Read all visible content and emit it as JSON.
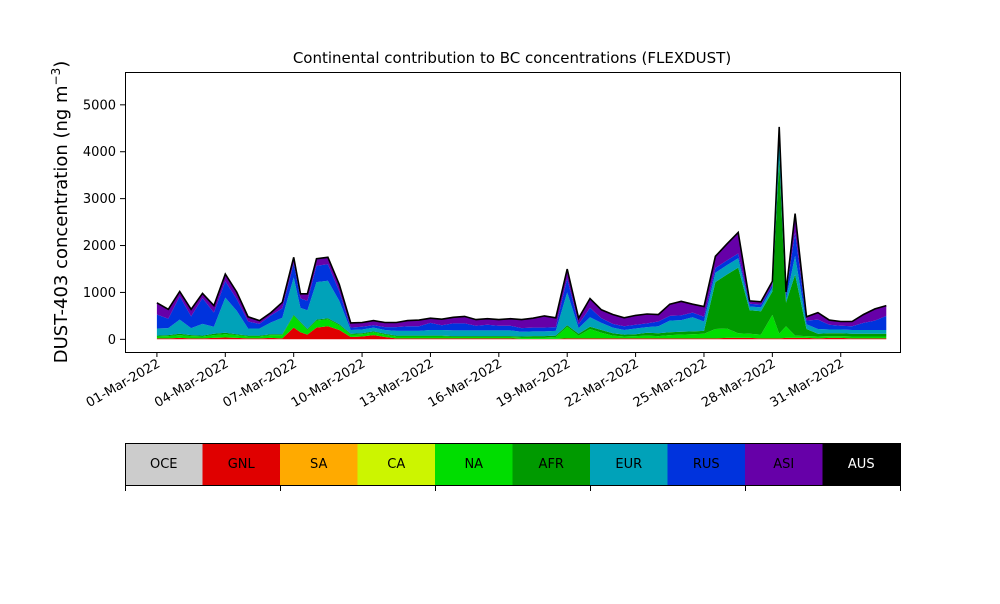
{
  "chart_data": {
    "type": "area",
    "title": "Continental contribution to BC concentrations (FLEXDUST)",
    "ylabel_main": "DUST-403 concentration (ng m",
    "ylabel_sup": "−3",
    "ylabel_close": ")",
    "xlabel": "",
    "ylim": [
      -270,
      5700
    ],
    "yticks": [
      0,
      1000,
      2000,
      3000,
      4000,
      5000
    ],
    "xticks": [
      {
        "day": 1,
        "label": "01-Mar-2022"
      },
      {
        "day": 4,
        "label": "04-Mar-2022"
      },
      {
        "day": 7,
        "label": "07-Mar-2022"
      },
      {
        "day": 10,
        "label": "10-Mar-2022"
      },
      {
        "day": 13,
        "label": "13-Mar-2022"
      },
      {
        "day": 16,
        "label": "16-Mar-2022"
      },
      {
        "day": 19,
        "label": "19-Mar-2022"
      },
      {
        "day": 22,
        "label": "22-Mar-2022"
      },
      {
        "day": 25,
        "label": "25-Mar-2022"
      },
      {
        "day": 28,
        "label": "28-Mar-2022"
      },
      {
        "day": 31,
        "label": "31-Mar-2022"
      }
    ],
    "xlim_days": [
      -0.4,
      33.6
    ],
    "legend": [
      {
        "name": "OCE",
        "color": "#cccccc",
        "text_color": "#000000"
      },
      {
        "name": "GNL",
        "color": "#e00000",
        "text_color": "#000000"
      },
      {
        "name": "SA",
        "color": "#ffaa00",
        "text_color": "#000000"
      },
      {
        "name": "CA",
        "color": "#ccf500",
        "text_color": "#000000"
      },
      {
        "name": "NA",
        "color": "#00dd00",
        "text_color": "#000000"
      },
      {
        "name": "AFR",
        "color": "#009a00",
        "text_color": "#000000"
      },
      {
        "name": "EUR",
        "color": "#00a2b9",
        "text_color": "#000000"
      },
      {
        "name": "RUS",
        "color": "#0033dd",
        "text_color": "#000000"
      },
      {
        "name": "ASI",
        "color": "#6600a8",
        "text_color": "#000000"
      },
      {
        "name": "AUS",
        "color": "#000000",
        "text_color": "#ffffff"
      }
    ],
    "series_order": [
      "GNL",
      "NA",
      "AFR",
      "EUR",
      "RUS",
      "ASI"
    ],
    "x_days": [
      1,
      1.5,
      2,
      2.5,
      3,
      3.5,
      4,
      4.5,
      5,
      5.5,
      6,
      6.5,
      7,
      7.3,
      7.6,
      8,
      8.5,
      9,
      9.5,
      10,
      10.5,
      11,
      11.5,
      12,
      12.5,
      13,
      13.5,
      14,
      14.5,
      15,
      15.5,
      16,
      16.5,
      17,
      17.5,
      18,
      18.5,
      19,
      19.5,
      20,
      20.5,
      21,
      21.5,
      22,
      22.5,
      23,
      23.5,
      24,
      24.5,
      25,
      25.5,
      26,
      26.5,
      27,
      27.5,
      28,
      28.3,
      28.6,
      29,
      29.5,
      30,
      30.5,
      31,
      31.5,
      32,
      32.5,
      33
    ],
    "series": [
      {
        "name": "GNL",
        "values": [
          20,
          20,
          30,
          20,
          20,
          30,
          40,
          30,
          20,
          20,
          30,
          20,
          250,
          150,
          100,
          250,
          280,
          200,
          50,
          60,
          90,
          50,
          20,
          20,
          20,
          20,
          20,
          20,
          20,
          20,
          20,
          20,
          20,
          10,
          10,
          10,
          10,
          20,
          20,
          20,
          20,
          20,
          20,
          20,
          20,
          20,
          20,
          20,
          20,
          20,
          20,
          30,
          30,
          30,
          20,
          20,
          20,
          30,
          30,
          30,
          20,
          30,
          30,
          20,
          20,
          20,
          20
        ]
      },
      {
        "name": "NA",
        "values": [
          40,
          50,
          60,
          50,
          40,
          60,
          70,
          60,
          40,
          40,
          60,
          70,
          250,
          200,
          100,
          150,
          150,
          100,
          50,
          50,
          60,
          50,
          40,
          40,
          40,
          40,
          40,
          30,
          30,
          30,
          30,
          30,
          30,
          30,
          30,
          30,
          40,
          250,
          60,
          200,
          120,
          60,
          40,
          50,
          60,
          50,
          70,
          80,
          90,
          100,
          200,
          200,
          100,
          90,
          80,
          500,
          100,
          250,
          50,
          40,
          40,
          40,
          40,
          40,
          40,
          40,
          40
        ]
      },
      {
        "name": "AFR",
        "values": [
          20,
          20,
          30,
          20,
          20,
          30,
          30,
          20,
          20,
          20,
          20,
          20,
          20,
          20,
          20,
          20,
          20,
          20,
          20,
          20,
          20,
          20,
          20,
          20,
          20,
          20,
          20,
          20,
          20,
          20,
          20,
          20,
          20,
          20,
          30,
          30,
          30,
          30,
          40,
          50,
          60,
          50,
          40,
          40,
          60,
          60,
          60,
          60,
          60,
          60,
          1000,
          1150,
          1400,
          500,
          500,
          500,
          3700,
          500,
          1300,
          150,
          60,
          60,
          60,
          60,
          60,
          60,
          60
        ]
      },
      {
        "name": "EUR",
        "values": [
          150,
          150,
          300,
          150,
          250,
          150,
          750,
          500,
          150,
          150,
          250,
          350,
          800,
          300,
          400,
          800,
          800,
          500,
          80,
          80,
          80,
          80,
          100,
          100,
          100,
          120,
          120,
          120,
          120,
          120,
          120,
          120,
          120,
          100,
          100,
          100,
          100,
          700,
          120,
          200,
          150,
          120,
          100,
          120,
          120,
          150,
          250,
          250,
          300,
          200,
          200,
          200,
          200,
          80,
          80,
          80,
          550,
          80,
          400,
          100,
          100,
          80,
          80,
          80,
          80,
          80,
          80
        ]
      },
      {
        "name": "RUS",
        "values": [
          300,
          200,
          500,
          250,
          550,
          300,
          350,
          250,
          150,
          100,
          150,
          200,
          300,
          200,
          200,
          350,
          350,
          200,
          50,
          60,
          50,
          60,
          80,
          100,
          100,
          150,
          100,
          150,
          150,
          100,
          120,
          100,
          100,
          80,
          80,
          80,
          80,
          300,
          80,
          200,
          100,
          80,
          80,
          80,
          80,
          100,
          100,
          100,
          100,
          100,
          100,
          100,
          100,
          60,
          60,
          60,
          60,
          100,
          500,
          80,
          200,
          100,
          80,
          80,
          150,
          200,
          300
        ]
      },
      {
        "name": "ASI",
        "values": [
          250,
          200,
          100,
          150,
          100,
          150,
          150,
          150,
          100,
          70,
          60,
          130,
          130,
          100,
          150,
          150,
          150,
          150,
          100,
          90,
          100,
          100,
          100,
          120,
          130,
          100,
          130,
          130,
          150,
          130,
          130,
          130,
          150,
          180,
          200,
          250,
          200,
          200,
          130,
          200,
          180,
          200,
          180,
          200,
          200,
          150,
          250,
          300,
          180,
          220,
          250,
          350,
          450,
          60,
          60,
          80,
          100,
          50,
          400,
          80,
          150,
          100,
          90,
          100,
          180,
          250,
          220
        ]
      }
    ]
  }
}
